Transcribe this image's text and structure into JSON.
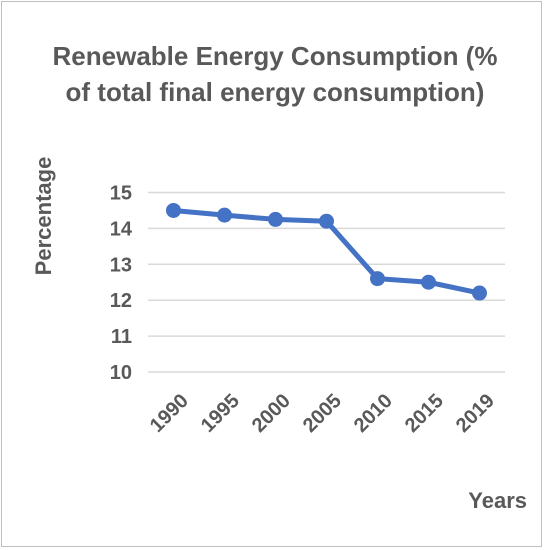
{
  "chart_data": {
    "type": "line",
    "title": "Renewable Energy Consumption (% of total final energy consumption)",
    "xlabel": "Years",
    "ylabel": "Percentage",
    "categories": [
      "1990",
      "1995",
      "2000",
      "2005",
      "2010",
      "2015",
      "2019"
    ],
    "series": [
      {
        "values": [
          14.5,
          14.37,
          14.25,
          14.2,
          12.6,
          12.5,
          12.2
        ],
        "color": "#4472c4"
      }
    ],
    "ylim": [
      10,
      15
    ],
    "yticks": [
      10,
      11,
      12,
      13,
      14,
      15
    ],
    "grid": true,
    "legend": "none"
  },
  "colors": {
    "text": "#595959",
    "gridline": "#d9d9d9",
    "border": "#bfbfbf",
    "series": "#4472c4"
  }
}
